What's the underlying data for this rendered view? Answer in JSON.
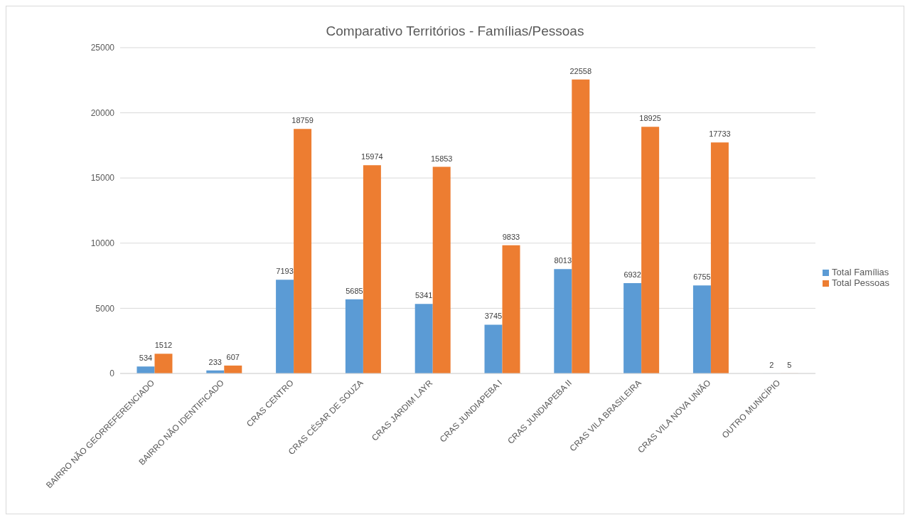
{
  "chart_data": {
    "type": "bar",
    "title": "Comparativo Territórios - Famílias/Pessoas",
    "categories": [
      "BAIRRO NÃO GEORREFERENCIADO",
      "BAIRRO NÃO IDENTIFICADO",
      "CRAS CENTRO",
      "CRAS CÉSAR DE SOUZA",
      "CRAS JARDIM LAYR",
      "CRAS JUNDIAPEBA I",
      "CRAS JUNDIAPEBA II",
      "CRAS VILA BRASILEIRA",
      "CRAS VILA NOVA UNIÃO",
      "OUTRO MUNICÍPIO"
    ],
    "series": [
      {
        "name": "Total Famílias",
        "color": "#5b9bd5",
        "values": [
          534,
          233,
          7193,
          5685,
          5341,
          3745,
          8013,
          6932,
          6755,
          2
        ]
      },
      {
        "name": "Total Pessoas",
        "color": "#ed7d31",
        "values": [
          1512,
          607,
          18759,
          15974,
          15853,
          9833,
          22558,
          18925,
          17733,
          5
        ]
      }
    ],
    "ylim": [
      0,
      25000
    ],
    "yticks": [
      0,
      5000,
      10000,
      15000,
      20000,
      25000
    ],
    "grid": "y",
    "legend": "right",
    "data_labels": true
  }
}
